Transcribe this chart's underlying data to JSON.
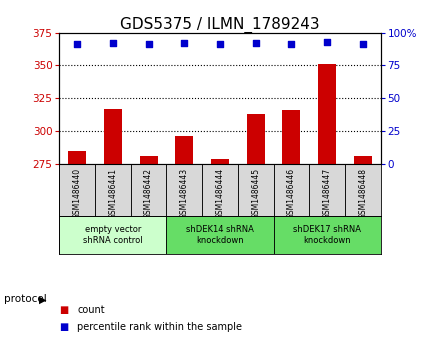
{
  "title": "GDS5375 / ILMN_1789243",
  "samples": [
    "GSM1486440",
    "GSM1486441",
    "GSM1486442",
    "GSM1486443",
    "GSM1486444",
    "GSM1486445",
    "GSM1486446",
    "GSM1486447",
    "GSM1486448"
  ],
  "counts": [
    285,
    317,
    281,
    296,
    279,
    313,
    316,
    351,
    281
  ],
  "percentiles": [
    91,
    92,
    91,
    92,
    91,
    92,
    91,
    93,
    91
  ],
  "ylim_left": [
    275,
    375
  ],
  "yticks_left": [
    275,
    300,
    325,
    350,
    375
  ],
  "ylim_right": [
    0,
    100
  ],
  "yticks_right": [
    0,
    25,
    50,
    75,
    100
  ],
  "bar_color": "#cc0000",
  "percentile_color": "#0000cc",
  "bar_width": 0.5,
  "groups": [
    {
      "label": "empty vector\nshRNA control",
      "start": 0,
      "end": 3,
      "color": "#ccffcc"
    },
    {
      "label": "shDEK14 shRNA\nknockdown",
      "start": 3,
      "end": 6,
      "color": "#66dd66"
    },
    {
      "label": "shDEK17 shRNA\nknockdown",
      "start": 6,
      "end": 9,
      "color": "#66dd66"
    }
  ],
  "protocol_label": "protocol",
  "legend_count_label": "count",
  "legend_percentile_label": "percentile rank within the sample",
  "title_fontsize": 11,
  "axis_label_color_left": "#cc0000",
  "axis_label_color_right": "#0000cc",
  "sample_box_color": "#d8d8d8",
  "plot_bg_color": "#ffffff"
}
